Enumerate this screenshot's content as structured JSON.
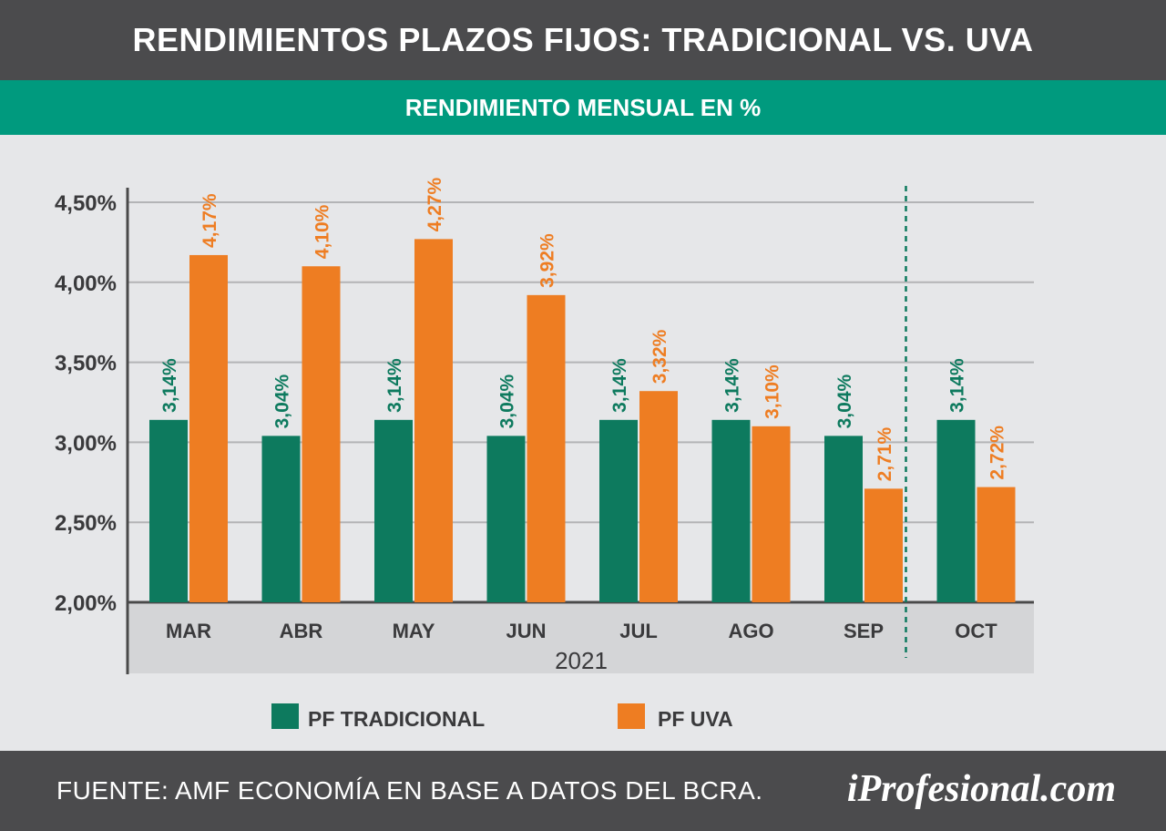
{
  "header": {
    "title": "RENDIMIENTOS PLAZOS FIJOS: TRADICIONAL VS. UVA",
    "subtitle": "RENDIMIENTO MENSUAL EN %"
  },
  "footer": {
    "source": "FUENTE: AMF ECONOMÍA EN BASE A DATOS DEL BCRA.",
    "brand": "iProfesional.com"
  },
  "chart_data": {
    "type": "bar",
    "categories": [
      "MAR",
      "ABR",
      "MAY",
      "JUN",
      "JUL",
      "AGO",
      "SEP",
      "OCT"
    ],
    "year_label": "2021",
    "series": [
      {
        "name": "PF TRADICIONAL",
        "color": "#0d7a5e",
        "values": [
          3.14,
          3.04,
          3.14,
          3.04,
          3.14,
          3.14,
          3.04,
          3.14
        ],
        "labels": [
          "3,14%",
          "3,04%",
          "3,14%",
          "3,04%",
          "3,14%",
          "3,14%",
          "3,04%",
          "3,14%"
        ]
      },
      {
        "name": "PF UVA",
        "color": "#ee7d22",
        "values": [
          4.17,
          4.1,
          4.27,
          3.92,
          3.32,
          3.1,
          2.71,
          2.72
        ],
        "labels": [
          "4,17%",
          "4,10%",
          "4,27%",
          "3,92%",
          "3,32%",
          "3,10%",
          "2,71%",
          "2,72%"
        ]
      }
    ],
    "ylim": [
      2.0,
      4.5
    ],
    "yticks": [
      2.0,
      2.5,
      3.0,
      3.5,
      4.0,
      4.5
    ],
    "ytick_labels": [
      "2,00%",
      "2,50%",
      "3,00%",
      "3,50%",
      "4,00%",
      "4,50%"
    ],
    "grid": true,
    "divider_after_category": "SEP",
    "legend_position": "bottom"
  }
}
